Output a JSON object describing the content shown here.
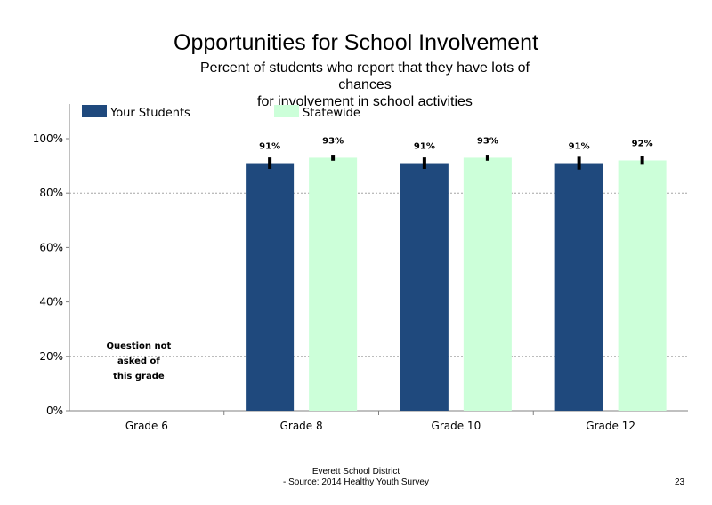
{
  "colors": {
    "your_students": "#1f497d",
    "statewide": "#ccffd9",
    "axis": "#808080",
    "grid": "#a6a6a6"
  },
  "chart_data": {
    "type": "bar",
    "title": "Opportunities for School Involvement",
    "subtitle_lines": [
      "Percent of students  who report that they have lots  of",
      "chances",
      "for involvement  in school activities"
    ],
    "categories": [
      "Grade 6",
      "Grade 8",
      "Grade 10",
      "Grade 12"
    ],
    "series": [
      {
        "name": "Your Students",
        "values": [
          null,
          91,
          91,
          91
        ],
        "labels": [
          "",
          "91%",
          "91%",
          "91%"
        ],
        "error": [
          null,
          3,
          3,
          3.5
        ],
        "color": "#1f497d"
      },
      {
        "name": "Statewide",
        "values": [
          null,
          93,
          93,
          92
        ],
        "labels": [
          "",
          "93%",
          "93%",
          "92%"
        ],
        "error": [
          null,
          1,
          1,
          2
        ],
        "color": "#ccffd9"
      }
    ],
    "ylim": [
      0,
      100
    ],
    "yticks": [
      0,
      20,
      40,
      60,
      80,
      100
    ],
    "ytick_labels": [
      "0%",
      "20%",
      "40%",
      "60%",
      "80%",
      "100%"
    ],
    "gridlines": [
      20,
      80
    ],
    "legend_position": "top",
    "annotation": {
      "category": "Grade 6",
      "lines": [
        "Question not",
        "asked of",
        "this grade"
      ]
    }
  },
  "footer": {
    "line1": "Everett School District",
    "line2": "- Source: 2014 Healthy  Youth Survey"
  },
  "page_number": "23"
}
